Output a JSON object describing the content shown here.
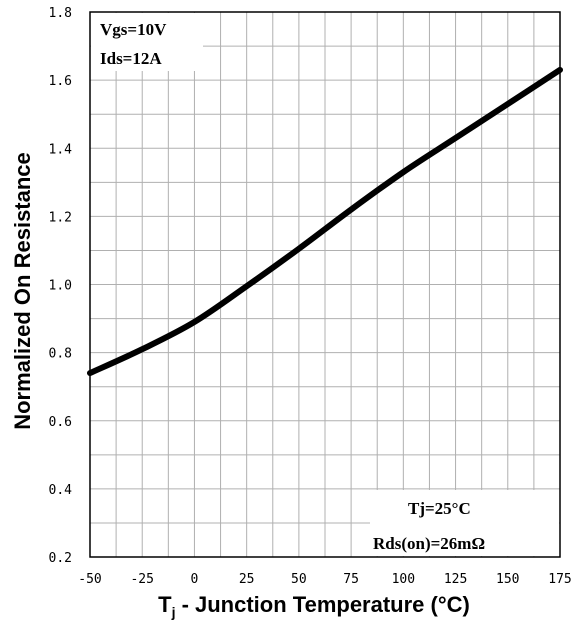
{
  "chart_data": {
    "type": "line",
    "xlabel_main": "T",
    "xlabel_sub": "j",
    "xlabel_rest": " - Junction Temperature (°C)",
    "ylabel": "Normalized On Resistance",
    "xlim": [
      -50,
      175
    ],
    "ylim": [
      0.2,
      1.8
    ],
    "x_ticks": [
      -50,
      -25,
      0,
      25,
      50,
      75,
      100,
      125,
      150,
      175
    ],
    "y_ticks": [
      "0.2",
      "0.4",
      "0.6",
      "0.8",
      "1.0",
      "1.2",
      "1.4",
      "1.6",
      "1.8"
    ],
    "x_grid_step": 12.5,
    "y_grid_step": 0.1,
    "grid": true,
    "series": [
      {
        "x": [
          -50,
          -25,
          0,
          25,
          50,
          75,
          100,
          125,
          150,
          175
        ],
        "y": [
          0.74,
          0.81,
          0.89,
          0.995,
          1.105,
          1.22,
          1.33,
          1.43,
          1.53,
          1.63
        ]
      }
    ],
    "annotations": {
      "top_left": [
        "Vgs=10V",
        "Ids=12A"
      ],
      "bottom_right": [
        "Tj=25°C",
        "Rds(on)=26mΩ"
      ]
    }
  }
}
